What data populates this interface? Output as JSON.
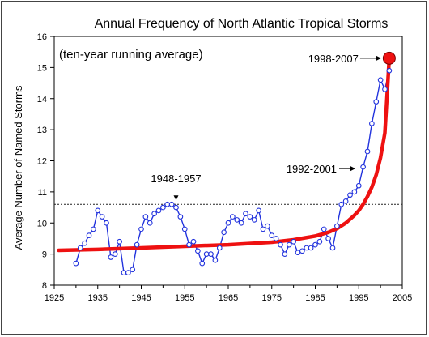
{
  "chart_data": {
    "type": "line",
    "title": "Annual Frequency of North Atlantic Tropical Storms",
    "subtitle": "(ten-year running average)",
    "xlabel": "",
    "ylabel": "Average Number of Named Storms",
    "xlim": [
      1925,
      2005
    ],
    "ylim": [
      8,
      16
    ],
    "xticks": [
      "1925",
      "1935",
      "1945",
      "1955",
      "1965",
      "1975",
      "1985",
      "1995",
      "2005"
    ],
    "yticks": [
      "8",
      "9",
      "10",
      "11",
      "12",
      "13",
      "14",
      "15",
      "16"
    ],
    "grid": false,
    "reference_line": 10.6,
    "series": [
      {
        "name": "",
        "color": "#2233dd",
        "marker": "open-circle",
        "x": [
          1930,
          1931,
          1932,
          1933,
          1934,
          1935,
          1936,
          1937,
          1938,
          1939,
          1940,
          1941,
          1942,
          1943,
          1944,
          1945,
          1946,
          1947,
          1948,
          1949,
          1950,
          1951,
          1952,
          1953,
          1954,
          1955,
          1956,
          1957,
          1958,
          1959,
          1960,
          1961,
          1962,
          1963,
          1964,
          1965,
          1966,
          1967,
          1968,
          1969,
          1970,
          1971,
          1972,
          1973,
          1974,
          1975,
          1976,
          1977,
          1978,
          1979,
          1980,
          1981,
          1982,
          1983,
          1984,
          1985,
          1986,
          1987,
          1988,
          1989,
          1990,
          1991,
          1992,
          1993,
          1994,
          1995,
          1996,
          1997,
          1998,
          1999,
          2000,
          2001,
          2002
        ],
        "y": [
          8.7,
          9.2,
          9.35,
          9.6,
          9.8,
          10.4,
          10.2,
          10.0,
          8.9,
          9.0,
          9.4,
          8.4,
          8.4,
          8.5,
          9.3,
          9.8,
          10.2,
          10.0,
          10.3,
          10.4,
          10.5,
          10.6,
          10.6,
          10.5,
          10.2,
          9.8,
          9.3,
          9.4,
          9.1,
          8.7,
          9.0,
          9.0,
          8.8,
          9.2,
          9.7,
          10.0,
          10.2,
          10.1,
          10.0,
          10.3,
          10.2,
          10.1,
          10.4,
          9.8,
          9.9,
          9.6,
          9.5,
          9.3,
          9.0,
          9.3,
          9.4,
          9.05,
          9.1,
          9.2,
          9.2,
          9.3,
          9.4,
          9.8,
          9.5,
          9.2,
          9.9,
          10.6,
          10.7,
          10.9,
          11.0,
          11.2,
          11.8,
          12.3,
          13.2,
          13.9,
          14.6,
          14.3,
          14.9
        ]
      },
      {
        "name": "",
        "color": "#ee1111",
        "marker": "none",
        "x": [
          1926,
          1935,
          1945,
          1955,
          1965,
          1975,
          1980,
          1985,
          1988,
          1990,
          1992,
          1994,
          1995,
          1996,
          1997,
          1998,
          1999,
          2000,
          2001,
          2002
        ],
        "y": [
          9.12,
          9.15,
          9.2,
          9.25,
          9.3,
          9.38,
          9.46,
          9.58,
          9.7,
          9.82,
          10.0,
          10.25,
          10.4,
          10.6,
          10.85,
          11.15,
          11.55,
          12.1,
          12.9,
          15.3
        ]
      }
    ],
    "highlight_point": {
      "x": 2002,
      "y": 15.3,
      "color": "#ee1111"
    },
    "annotations": [
      {
        "label": "1998-2007",
        "x": 2002,
        "y": 15.3
      },
      {
        "label": "1992-2001",
        "x": 1997,
        "y": 11.75
      },
      {
        "label": "1948-1957",
        "x": 1953,
        "y": 10.6
      }
    ]
  }
}
